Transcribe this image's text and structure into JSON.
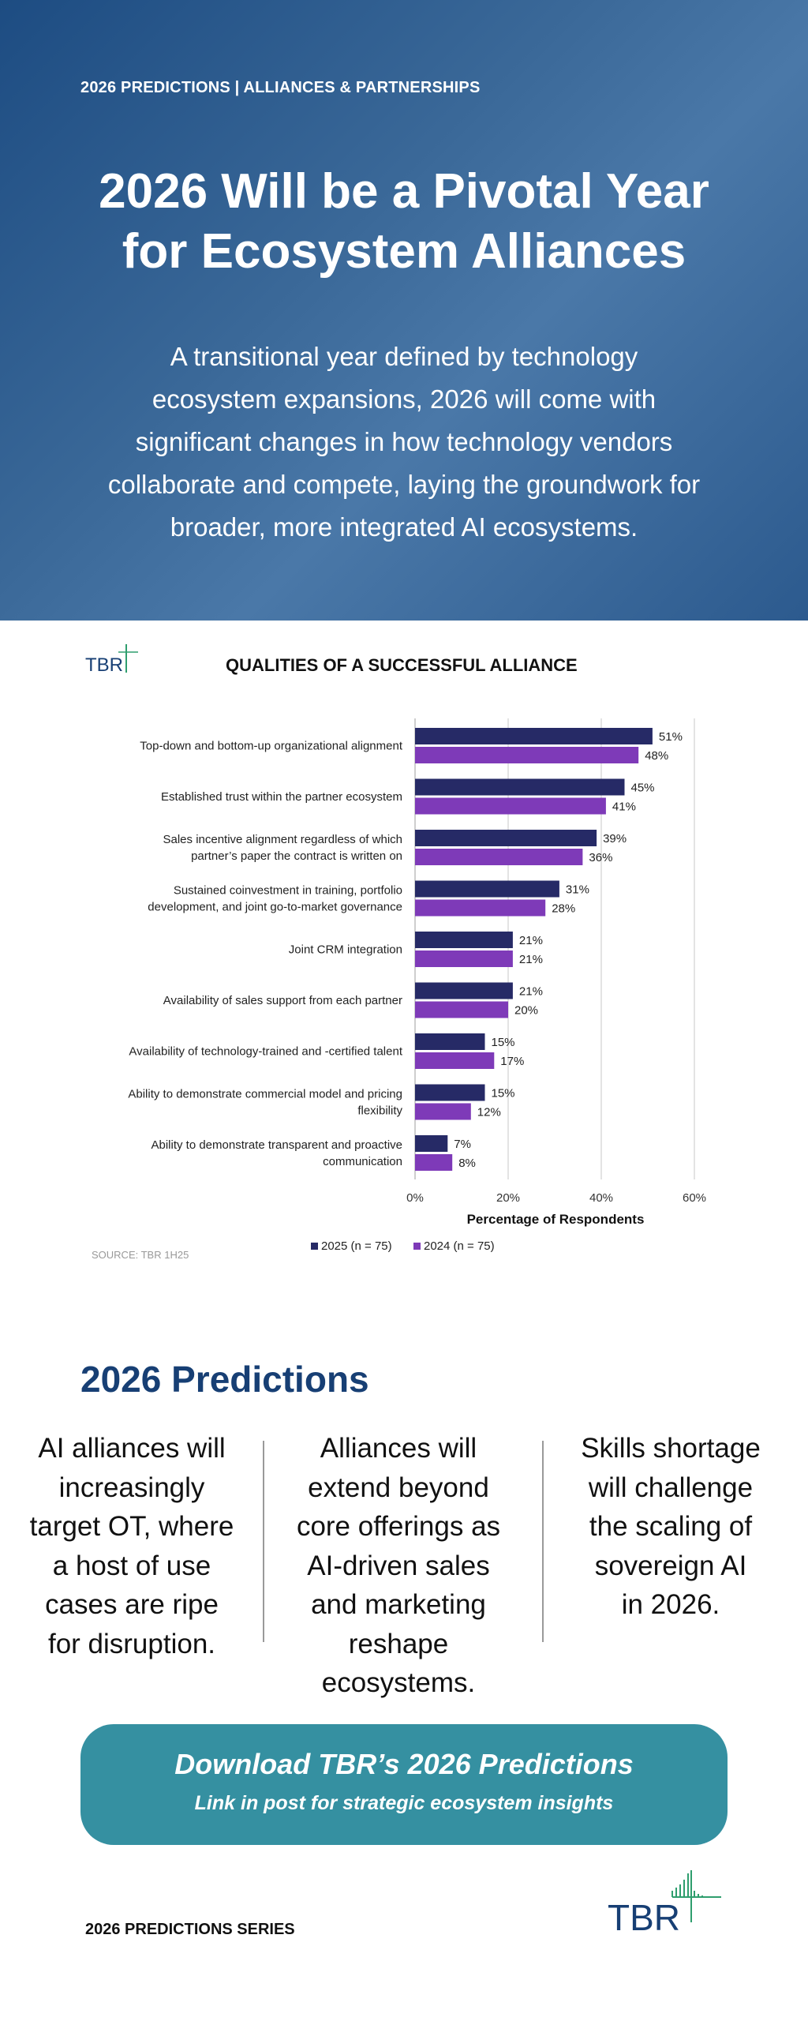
{
  "header": {
    "eyebrow": "2026 PREDICTIONS | ALLIANCES & PARTNERSHIPS",
    "title_line1": "2026 Will be a Pivotal Year",
    "title_line2": "for Ecosystem Alliances",
    "subtitle_lines": [
      "A transitional year defined by technology",
      "ecosystem expansions, 2026 will come with",
      "significant changes in how technology vendors",
      "collaborate and compete, laying the groundwork for",
      "broader, more integrated AI ecosystems."
    ]
  },
  "chart_data": {
    "type": "bar",
    "orientation": "horizontal",
    "logo_text": "TBR",
    "title": "QUALITIES OF A SUCCESSFUL ALLIANCE",
    "categories": [
      [
        "Top-down and bottom-up organizational alignment"
      ],
      [
        "Established trust within the partner ecosystem"
      ],
      [
        "Sales incentive alignment regardless of which",
        "partner’s paper the contract is written on"
      ],
      [
        "Sustained coinvestment in training, portfolio",
        "development, and joint go-to-market governance"
      ],
      [
        "Joint CRM integration"
      ],
      [
        "Availability of sales support from each partner"
      ],
      [
        "Availability of technology-trained and -certified talent"
      ],
      [
        "Ability to demonstrate commercial model and pricing",
        "flexibility"
      ],
      [
        "Ability to demonstrate transparent and proactive",
        "communication"
      ]
    ],
    "series": [
      {
        "name": "2025 (n = 75)",
        "color": "#262a66",
        "values": [
          51,
          45,
          39,
          31,
          21,
          21,
          15,
          15,
          7
        ]
      },
      {
        "name": "2024 (n = 75)",
        "color": "#7e3ab8",
        "values": [
          48,
          41,
          36,
          28,
          21,
          20,
          17,
          12,
          8
        ]
      }
    ],
    "xlabel": "Percentage of Respondents",
    "xlim": [
      0,
      60
    ],
    "xticks": [
      "0%",
      "20%",
      "40%",
      "60%"
    ],
    "xtick_values": [
      0,
      20,
      40,
      60
    ],
    "value_suffix": "%",
    "grid": true,
    "legend_position": "bottom",
    "source": "SOURCE: TBR 1H25"
  },
  "predictions": {
    "heading": "2026 Predictions",
    "items": [
      [
        "AI alliances will",
        "increasingly",
        "target OT, where",
        "a host of use",
        "cases are ripe",
        "for disruption."
      ],
      [
        "Alliances will",
        "extend beyond",
        "core offerings as",
        "AI-driven sales",
        "and marketing",
        "reshape",
        "ecosystems."
      ],
      [
        "Skills shortage",
        "will challenge",
        "the scaling of",
        "sovereign AI",
        "in 2026."
      ]
    ]
  },
  "cta": {
    "title": "Download TBR’s 2026 Predictions",
    "subtitle": "Link in post for strategic ecosystem insights"
  },
  "footer": {
    "series_label": "2026 PREDICTIONS SERIES",
    "logo_text": "TBR"
  },
  "colors": {
    "accent": "#3590a1",
    "heading_blue": "#173f74",
    "logo_green": "#2f9e6e"
  }
}
